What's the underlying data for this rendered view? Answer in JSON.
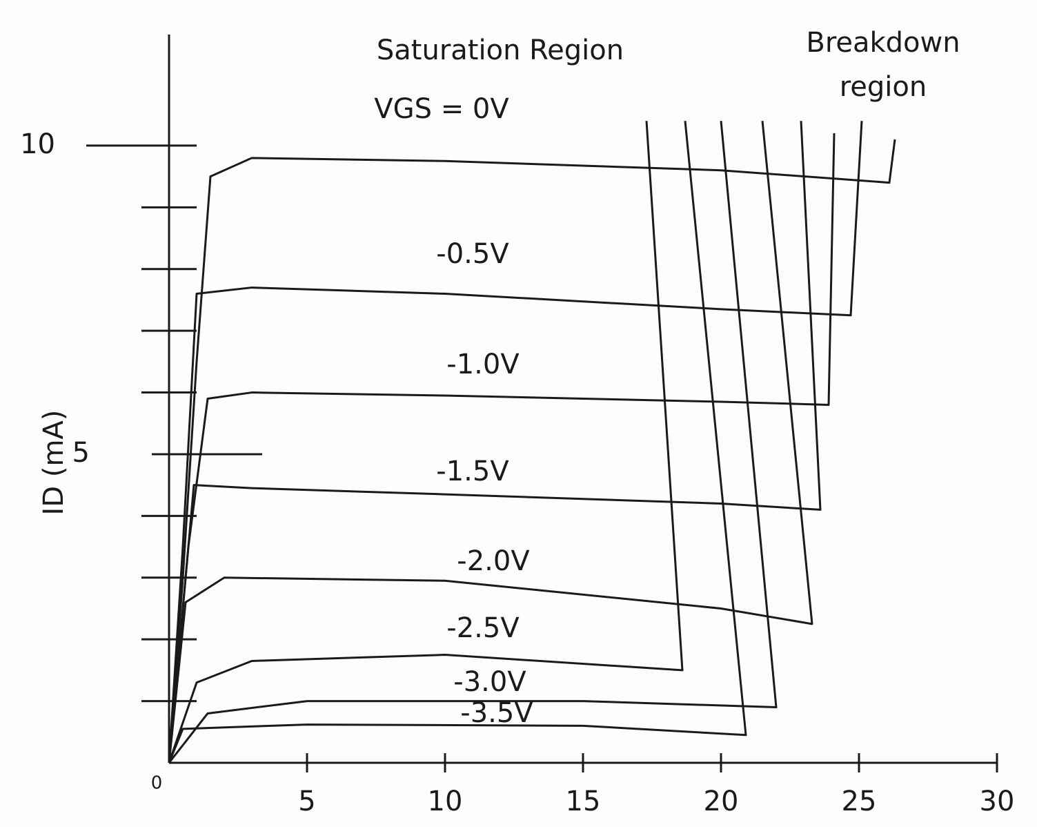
{
  "chart_data": {
    "type": "line",
    "ylabel": "ID (mA)",
    "annotations": [
      "Saturation Region",
      "Breakdown region"
    ],
    "xlim": [
      0,
      30
    ],
    "xticks": [
      0,
      5,
      10,
      15,
      20,
      25,
      30
    ],
    "ylim": [
      0,
      11.8
    ],
    "yticks": [
      5,
      10
    ],
    "yminorticks": [
      1,
      2,
      3,
      4,
      6,
      7,
      8,
      9
    ],
    "grid": false,
    "series": [
      {
        "name": "VGS = 0V",
        "color": "#1a1a1a",
        "x": [
          0,
          0.5,
          1,
          1.5,
          3,
          10,
          20,
          26.1,
          26.3
        ],
        "values": [
          0,
          3,
          6.5,
          9.5,
          9.8,
          9.75,
          9.6,
          9.4,
          10.1
        ]
      },
      {
        "name": "-0.5V",
        "color": "#1a1a1a",
        "x": [
          0,
          0.5,
          1,
          3,
          10,
          20,
          24.7,
          25.1
        ],
        "values": [
          0,
          3.5,
          7.6,
          7.7,
          7.6,
          7.35,
          7.25,
          10.4
        ]
      },
      {
        "name": "-1.0V",
        "color": "#1a1a1a",
        "x": [
          0,
          0.7,
          1.4,
          3,
          10,
          20,
          23.9,
          24.1
        ],
        "values": [
          0,
          3.5,
          5.9,
          6.0,
          5.95,
          5.85,
          5.8,
          10.2
        ]
      },
      {
        "name": "-1.5V",
        "color": "#1a1a1a",
        "x": [
          0,
          0.5,
          0.9,
          3,
          10,
          20,
          23.6,
          22.9
        ],
        "values": [
          0,
          2.5,
          4.5,
          4.45,
          4.35,
          4.2,
          4.1,
          10.4
        ]
      },
      {
        "name": "-2.0V",
        "color": "#1a1a1a",
        "x": [
          0,
          0.6,
          2,
          10,
          20,
          23.3,
          21.5
        ],
        "values": [
          0,
          2.6,
          3.0,
          2.95,
          2.5,
          2.25,
          10.4
        ]
      },
      {
        "name": "-2.5V",
        "color": "#1a1a1a",
        "x": [
          0,
          1,
          3,
          10,
          18.6,
          17.3
        ],
        "values": [
          0,
          1.3,
          1.65,
          1.75,
          1.5,
          10.4
        ]
      },
      {
        "name": "-3.0V",
        "color": "#1a1a1a",
        "x": [
          0,
          1.4,
          5,
          15,
          22,
          20
        ],
        "values": [
          0,
          0.8,
          1.0,
          1.0,
          0.9,
          10.4
        ]
      },
      {
        "name": "-3.5V",
        "color": "#1a1a1a",
        "x": [
          0,
          0.5,
          5,
          15,
          20.9,
          18.7
        ],
        "values": [
          0,
          0.55,
          0.62,
          0.6,
          0.45,
          10.4
        ]
      }
    ]
  }
}
